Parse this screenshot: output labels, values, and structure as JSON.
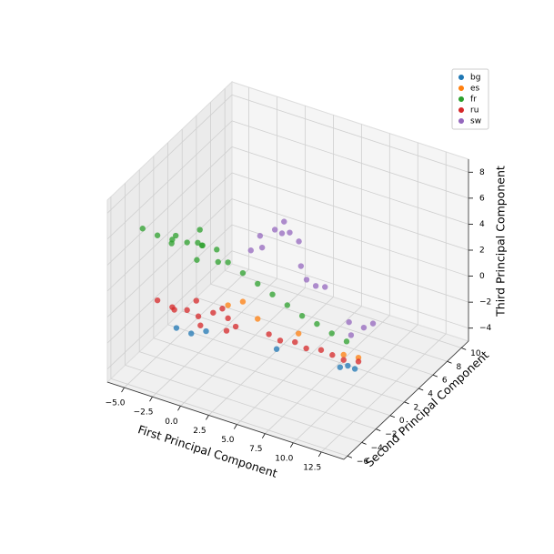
{
  "chart_data": {
    "type": "scatter3d",
    "xlabel": "First Principal Component",
    "ylabel": "Second Principal Component",
    "zlabel": "Third Principal Component",
    "xlim": [
      -6.5,
      14.5
    ],
    "ylim": [
      -6.5,
      11
    ],
    "zlim": [
      -5,
      9
    ],
    "xticks": [
      {
        "value": -5,
        "label": "−5.0"
      },
      {
        "value": -2.5,
        "label": "−2.5"
      },
      {
        "value": 0,
        "label": "0.0"
      },
      {
        "value": 2.5,
        "label": "2.5"
      },
      {
        "value": 5,
        "label": "5.0"
      },
      {
        "value": 7.5,
        "label": "7.5"
      },
      {
        "value": 10,
        "label": "10.0"
      },
      {
        "value": 12.5,
        "label": "12.5"
      }
    ],
    "yticks": [
      {
        "value": -6,
        "label": "−6"
      },
      {
        "value": -4,
        "label": "−4"
      },
      {
        "value": -2,
        "label": "−2"
      },
      0,
      2,
      4,
      6,
      8,
      10
    ],
    "zticks": [
      {
        "value": -4,
        "label": "−4"
      },
      {
        "value": -2,
        "label": "−2"
      },
      0,
      2,
      4,
      6,
      8
    ],
    "grid": true,
    "legend": "upper right",
    "series": [
      {
        "name": "bg",
        "color": "#1f77b4",
        "x": [
          0,
          1,
          -1,
          11,
          12,
          11.5,
          6
        ],
        "y": [
          -5,
          -4.5,
          -5.5,
          -1.5,
          -1,
          -1.2,
          -2.5
        ],
        "z": [
          -0.2,
          0,
          0.2,
          -1.5,
          -1.6,
          -1.4,
          -1
        ]
      },
      {
        "name": "es",
        "color": "#ff7f0e",
        "x": [
          2,
          3,
          11,
          12,
          7,
          4
        ],
        "y": [
          -3,
          -2.5,
          -1,
          -0.5,
          -1,
          -2
        ],
        "z": [
          1.5,
          1.8,
          -0.8,
          -1,
          -0.3,
          0.5
        ]
      },
      {
        "name": "fr",
        "color": "#2ca02c",
        "x": [
          -3,
          -2,
          -1,
          0,
          1,
          -2.5,
          -1.5,
          0.5,
          1.5,
          -0.5,
          2,
          3,
          4,
          5,
          6,
          7,
          8,
          9,
          10,
          -4,
          -1,
          0.5
        ],
        "y": [
          -5,
          -4.5,
          -4,
          -3.5,
          -3,
          -3.8,
          -4.8,
          -4.2,
          -3.6,
          -3,
          -3,
          -2.5,
          -2,
          -1.5,
          -1,
          -0.5,
          0,
          0.5,
          1,
          -5.5,
          -2.5,
          -5
        ],
        "z": [
          6.5,
          6.2,
          6,
          5.8,
          5.5,
          5.4,
          6.8,
          6.3,
          5,
          6.6,
          4.8,
          4,
          3.2,
          2.4,
          1.6,
          0.8,
          0.2,
          -0.5,
          -1.1,
          7,
          5.2,
          5.6
        ]
      },
      {
        "name": "ru",
        "color": "#d62728",
        "x": [
          -2,
          -1,
          0,
          1,
          2,
          -1.5,
          0.5,
          1.5,
          -0.5,
          2.5,
          5,
          6,
          7,
          8,
          9,
          10,
          11,
          12,
          -3,
          3
        ],
        "y": [
          -4.5,
          -4,
          -4,
          -3.5,
          -3,
          -5,
          -4.5,
          -3,
          -3.5,
          -4,
          -2,
          -2,
          -1.5,
          -1.5,
          -1,
          -1,
          -1,
          -0.5,
          -5,
          -3.5
        ],
        "z": [
          1,
          0.8,
          0.6,
          0.9,
          0.5,
          1.2,
          0.3,
          1.1,
          1.4,
          0.2,
          -0.4,
          -0.6,
          -0.7,
          -0.9,
          -1,
          -1.1,
          -1.2,
          -1.3,
          1.5,
          0.4
        ]
      },
      {
        "name": "sw",
        "color": "#9467bd",
        "x": [
          2,
          3,
          4,
          2.5,
          3.5,
          3,
          4.5,
          5,
          6,
          6.5,
          5.5,
          8,
          9,
          9.5,
          8.5,
          1.5
        ],
        "y": [
          1.5,
          2,
          2.5,
          1,
          2.5,
          3,
          3,
          2.5,
          3,
          3.5,
          2.5,
          4.5,
          5,
          5.5,
          4,
          1
        ],
        "z": [
          4.5,
          5,
          4.8,
          4,
          5.5,
          4.2,
          4,
          2.5,
          1,
          0.8,
          1.6,
          -2,
          -2.4,
          -2.2,
          -2.6,
          3.5
        ]
      }
    ]
  }
}
